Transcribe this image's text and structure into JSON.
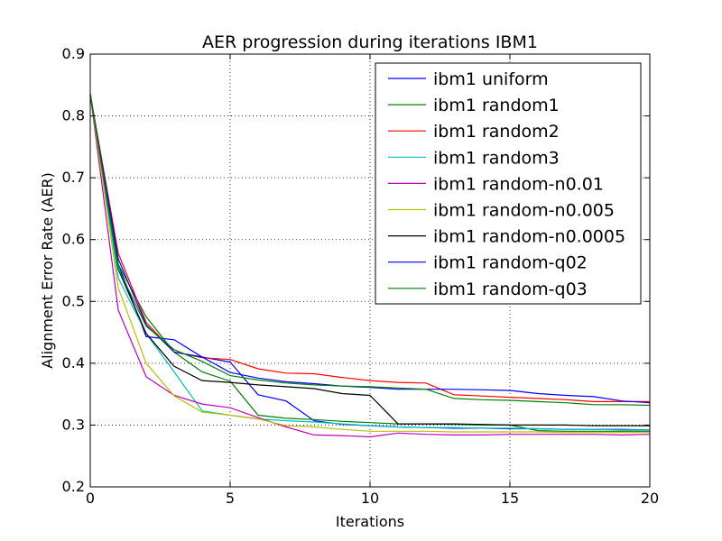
{
  "chart_data": {
    "type": "line",
    "title": "AER progression during iterations IBM1",
    "xlabel": "Iterations",
    "ylabel": "Alignment Error Rate (AER)",
    "xlim": [
      0,
      20
    ],
    "ylim": [
      0.2,
      0.9
    ],
    "xticks": [
      0,
      5,
      10,
      15,
      20
    ],
    "yticks": [
      0.2,
      0.3,
      0.4,
      0.5,
      0.6,
      0.7,
      0.8,
      0.9
    ],
    "xtick_labels": [
      "0",
      "5",
      "10",
      "15",
      "20"
    ],
    "ytick_labels": [
      "0.2",
      "0.3",
      "0.4",
      "0.5",
      "0.6",
      "0.7",
      "0.8",
      "0.9"
    ],
    "grid": true,
    "legend_position": "top-right",
    "x": [
      0,
      1,
      2,
      3,
      4,
      5,
      6,
      7,
      8,
      9,
      10,
      11,
      12,
      13,
      14,
      15,
      16,
      17,
      18,
      19,
      20
    ],
    "series": [
      {
        "name": "ibm1 uniform",
        "color": "#0000ff",
        "values": [
          0.835,
          0.56,
          0.443,
          0.438,
          0.41,
          0.402,
          0.349,
          0.339,
          0.307,
          0.301,
          0.299,
          0.297,
          0.296,
          0.295,
          0.295,
          0.294,
          0.294,
          0.293,
          0.293,
          0.293,
          0.292
        ]
      },
      {
        "name": "ibm1 random1",
        "color": "#008000",
        "values": [
          0.835,
          0.56,
          0.475,
          0.418,
          0.386,
          0.371,
          0.316,
          0.311,
          0.309,
          0.306,
          0.304,
          0.302,
          0.302,
          0.301,
          0.3,
          0.3,
          0.291,
          0.29,
          0.29,
          0.29,
          0.29
        ]
      },
      {
        "name": "ibm1 random2",
        "color": "#ff0000",
        "values": [
          0.835,
          0.578,
          0.466,
          0.418,
          0.409,
          0.406,
          0.391,
          0.384,
          0.383,
          0.377,
          0.372,
          0.369,
          0.368,
          0.349,
          0.347,
          0.345,
          0.343,
          0.341,
          0.338,
          0.338,
          0.338
        ]
      },
      {
        "name": "ibm1 random3",
        "color": "#00bfbf",
        "values": [
          0.835,
          0.538,
          0.448,
          0.386,
          0.323,
          0.316,
          0.31,
          0.307,
          0.305,
          0.302,
          0.299,
          0.297,
          0.296,
          0.296,
          0.295,
          0.295,
          0.294,
          0.293,
          0.293,
          0.292,
          0.292
        ]
      },
      {
        "name": "ibm1 random-n0.01",
        "color": "#bf00bf",
        "values": [
          0.835,
          0.486,
          0.378,
          0.348,
          0.334,
          0.328,
          0.312,
          0.297,
          0.284,
          0.283,
          0.281,
          0.287,
          0.285,
          0.284,
          0.284,
          0.285,
          0.285,
          0.285,
          0.285,
          0.284,
          0.285
        ]
      },
      {
        "name": "ibm1 random-n0.005",
        "color": "#bfbf00",
        "values": [
          0.835,
          0.522,
          0.4,
          0.347,
          0.321,
          0.316,
          0.31,
          0.299,
          0.297,
          0.293,
          0.29,
          0.29,
          0.29,
          0.289,
          0.289,
          0.289,
          0.289,
          0.288,
          0.288,
          0.288,
          0.288
        ]
      },
      {
        "name": "ibm1 random-n0.0005",
        "color": "#000000",
        "values": [
          0.835,
          0.552,
          0.448,
          0.395,
          0.372,
          0.369,
          0.365,
          0.362,
          0.359,
          0.351,
          0.348,
          0.302,
          0.302,
          0.302,
          0.301,
          0.3,
          0.3,
          0.3,
          0.299,
          0.299,
          0.299
        ]
      },
      {
        "name": "ibm1 random-q02",
        "color": "#0000ff",
        "values": [
          0.835,
          0.569,
          0.462,
          0.418,
          0.41,
          0.385,
          0.376,
          0.37,
          0.367,
          0.363,
          0.361,
          0.358,
          0.358,
          0.358,
          0.357,
          0.356,
          0.351,
          0.348,
          0.346,
          0.339,
          0.336
        ]
      },
      {
        "name": "ibm1 random-q03",
        "color": "#008000",
        "values": [
          0.835,
          0.553,
          0.46,
          0.422,
          0.403,
          0.38,
          0.373,
          0.368,
          0.365,
          0.363,
          0.362,
          0.36,
          0.358,
          0.343,
          0.341,
          0.34,
          0.338,
          0.336,
          0.333,
          0.333,
          0.332
        ]
      }
    ]
  }
}
